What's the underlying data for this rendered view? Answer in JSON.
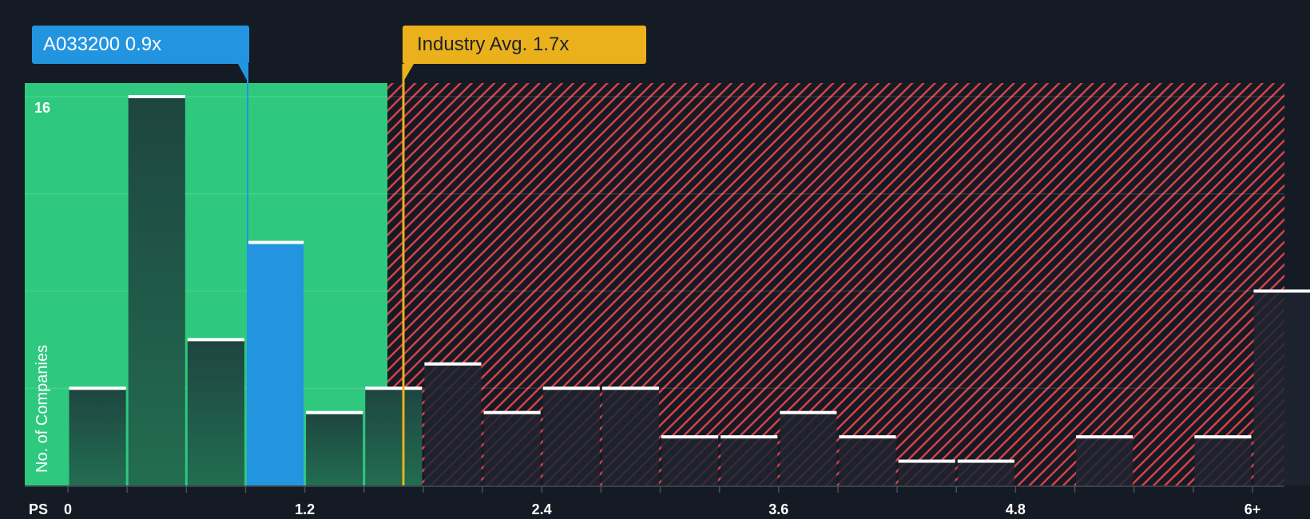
{
  "chart_data": {
    "type": "bar",
    "title": "",
    "xlabel": "PS",
    "ylabel": "No. of Companies",
    "x_tick_labels": [
      "0",
      "1.2",
      "2.4",
      "3.6",
      "4.8",
      "6+"
    ],
    "x_tick_values": [
      0,
      1.2,
      2.4,
      3.6,
      4.8,
      6.0
    ],
    "y_tick_labels": [
      "16"
    ],
    "ylim": [
      0,
      16.5
    ],
    "xlim": [
      -0.2,
      6.15
    ],
    "gridlines_y": [
      4,
      8,
      12,
      16
    ],
    "bin_width": 0.3,
    "categories": [
      "0-0.3",
      "0.3-0.6",
      "0.6-0.9",
      "0.9-1.2",
      "1.2-1.5",
      "1.5-1.8",
      "1.8-2.1",
      "2.1-2.4",
      "2.4-2.7",
      "2.7-3.0",
      "3.0-3.3",
      "3.3-3.6",
      "3.6-3.9",
      "3.9-4.2",
      "4.2-4.5",
      "4.5-4.8",
      "4.8-5.1",
      "5.1-5.4",
      "5.4-5.7",
      "5.7-6.0",
      "6+"
    ],
    "values": [
      4,
      16,
      6,
      10,
      3,
      4,
      5,
      3,
      4,
      4,
      2,
      2,
      3,
      2,
      1,
      1,
      0,
      2,
      0,
      2,
      8
    ],
    "highlight_bin_index": 3,
    "markers": [
      {
        "name": "A033200",
        "value": 0.9,
        "label": "A033200 0.9x",
        "color": "#2394e0"
      },
      {
        "name": "Industry Avg.",
        "value": 1.7,
        "label": "Industry Avg. 1.7x",
        "color": "#ebb11c"
      }
    ],
    "regions": [
      {
        "name": "undervalued",
        "from": -0.2,
        "to": 1.62,
        "color": "#2ec97f"
      },
      {
        "name": "overvalued",
        "from": 1.62,
        "to": 6.15,
        "color": "#e0414a",
        "pattern": "diagonal-hatch"
      }
    ],
    "legend": "none"
  },
  "labels": {
    "company_callout": "A033200 0.9x",
    "industry_callout": "Industry Avg. 1.7x",
    "x_axis_prefix": "PS",
    "y_axis_title": "No. of Companies",
    "y_max_tick": "16"
  },
  "colors": {
    "background": "#151b24",
    "fair_zone": "#2ec97f",
    "overvalued_hatch": "#e0414a",
    "company_bar": "#2394e0",
    "industry_line": "#ebb11c",
    "bar_cap": "#ffffff"
  }
}
